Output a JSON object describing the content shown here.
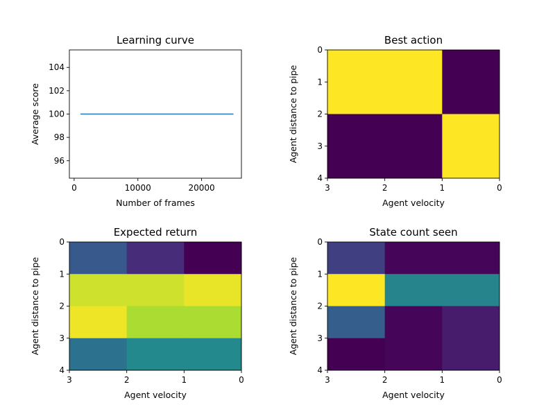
{
  "chart_data": [
    {
      "type": "line",
      "title": "Learning curve",
      "xlabel": "Number of frames",
      "ylabel": "Average score",
      "xlim": [
        -750,
        26250
      ],
      "ylim": [
        94.5,
        105.5
      ],
      "xticks": [
        0,
        10000,
        20000
      ],
      "xtick_labels": [
        "0",
        "10000",
        "20000"
      ],
      "yticks": [
        96,
        98,
        100,
        102,
        104
      ],
      "ytick_labels": [
        "96",
        "98",
        "100",
        "102",
        "104"
      ],
      "x": [
        1000,
        25000
      ],
      "y": [
        100,
        100
      ],
      "line_color": "#1f77b4",
      "grid": false
    },
    {
      "type": "heatmap",
      "title": "Best action",
      "xlabel": "Agent velocity",
      "ylabel": "Agent distance to pipe",
      "x_edges": [
        3,
        2,
        1,
        0
      ],
      "y_edges": [
        0,
        2,
        4
      ],
      "xtick_labels": [
        "3",
        "2",
        "1",
        "0"
      ],
      "ytick_labels": [
        "0",
        "1",
        "2",
        "3",
        "4"
      ],
      "colormap": "viridis",
      "vmin": 0,
      "vmax": 1,
      "values": [
        [
          1,
          1,
          0
        ],
        [
          0,
          0,
          1
        ]
      ]
    },
    {
      "type": "heatmap",
      "title": "Expected return",
      "xlabel": "Agent velocity",
      "ylabel": "Agent distance to pipe",
      "x_edges": [
        3,
        2,
        1,
        0
      ],
      "y_edges": [
        0,
        1,
        2,
        3,
        4
      ],
      "xtick_labels": [
        "3",
        "2",
        "1",
        "0"
      ],
      "ytick_labels": [
        "0",
        "1",
        "2",
        "3",
        "4"
      ],
      "colormap": "viridis",
      "vmin": 0,
      "vmax": 1,
      "values": [
        [
          0.28,
          0.15,
          0.0
        ],
        [
          0.93,
          0.93,
          0.97
        ],
        [
          0.98,
          0.88,
          0.88
        ],
        [
          0.38,
          0.47,
          0.47
        ]
      ]
    },
    {
      "type": "heatmap",
      "title": "State count seen",
      "xlabel": "Agent velocity",
      "ylabel": "Agent distance to pipe",
      "x_edges": [
        3,
        2,
        1,
        0
      ],
      "y_edges": [
        0,
        1,
        2,
        3,
        4
      ],
      "xtick_labels": [
        "3",
        "2",
        "1",
        "0"
      ],
      "ytick_labels": [
        "0",
        "1",
        "2",
        "3",
        "4"
      ],
      "colormap": "viridis",
      "vmin": 0,
      "vmax": 1,
      "values": [
        [
          0.2,
          0.02,
          0.02
        ],
        [
          1.0,
          0.45,
          0.45
        ],
        [
          0.3,
          0.02,
          0.1
        ],
        [
          0.0,
          0.02,
          0.1
        ]
      ]
    }
  ]
}
